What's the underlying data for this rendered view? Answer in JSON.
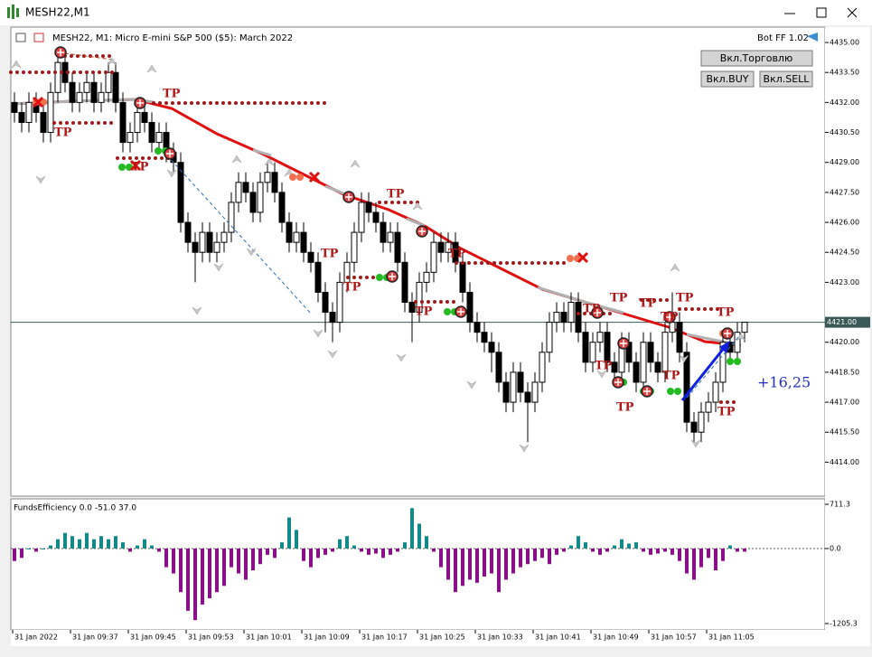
{
  "window": {
    "title": "MESH22,M1"
  },
  "chart_header": {
    "symbol_info": "MESH22, M1:  Micro E-mini S&P 500 ($5): March 2022",
    "bot_label": "Bot FF 1.02"
  },
  "buttons": {
    "trade": "Вкл.Торговлю",
    "buy": "Вкл.BUY",
    "sell": "Вкл.SELL"
  },
  "chart_data": {
    "type": "candlestick",
    "ylim": [
      4412.3,
      4435.77
    ],
    "yticks": [
      {
        "value": 4435,
        "label": "4435.00"
      },
      {
        "value": 4433.5,
        "label": "4433.50"
      },
      {
        "value": 4432,
        "label": "4432.00"
      },
      {
        "value": 4430.5,
        "label": "4430.50"
      },
      {
        "value": 4429,
        "label": "4429.00"
      },
      {
        "value": 4427.5,
        "label": "4427.50"
      },
      {
        "value": 4426,
        "label": "4426.00"
      },
      {
        "value": 4424.5,
        "label": "4424.50"
      },
      {
        "value": 4423,
        "label": "4423.00"
      },
      {
        "value": 4420,
        "label": "4420.00"
      },
      {
        "value": 4418.5,
        "label": "4418.50"
      },
      {
        "value": 4417,
        "label": "4417.00"
      },
      {
        "value": 4415.5,
        "label": "4415.50"
      },
      {
        "value": 4414,
        "label": "4414.00"
      }
    ],
    "current_price": {
      "value": 4421,
      "label": "4421.00"
    },
    "time_labels": [
      "31 Jan 2022",
      "31 Jan 09:37",
      "31 Jan 09:45",
      "31 Jan 09:53",
      "31 Jan 10:01",
      "31 Jan 10:09",
      "31 Jan 10:17",
      "31 Jan 10:25",
      "31 Jan 10:33",
      "31 Jan 10:41",
      "31 Jan 10:49",
      "31 Jan 10:57",
      "31 Jan 11:05"
    ],
    "candles": [
      [
        4432,
        4432.5,
        4431,
        4431.5
      ],
      [
        4431.5,
        4432,
        4430.5,
        4431
      ],
      [
        4431,
        4432.5,
        4430.5,
        4432
      ],
      [
        4432,
        4432.5,
        4431,
        4431.5
      ],
      [
        4431.5,
        4432,
        4430,
        4430.5
      ],
      [
        4430.5,
        4433,
        4430,
        4432.5
      ],
      [
        4432.5,
        4434.5,
        4432,
        4434
      ],
      [
        4434,
        4434.5,
        4432.5,
        4433
      ],
      [
        4433,
        4433.5,
        4431.5,
        4432
      ],
      [
        4432,
        4433,
        4431.5,
        4432.5
      ],
      [
        4432.5,
        4433.5,
        4432,
        4433
      ],
      [
        4433,
        4433.5,
        4431.5,
        4432
      ],
      [
        4432,
        4433,
        4431.5,
        4432.5
      ],
      [
        4432.5,
        4434,
        4432,
        4433.5
      ],
      [
        4433.5,
        4434,
        4431.5,
        4432
      ],
      [
        4432,
        4432.5,
        4429.5,
        4430
      ],
      [
        4430,
        4431,
        4429.5,
        4430.5
      ],
      [
        4430.5,
        4432,
        4430,
        4431.5
      ],
      [
        4431.5,
        4432,
        4430.5,
        4431
      ],
      [
        4431,
        4431.5,
        4429.5,
        4430
      ],
      [
        4430,
        4431,
        4429.5,
        4430.5
      ],
      [
        4430.5,
        4431,
        4429,
        4429.5
      ],
      [
        4429.5,
        4430,
        4428.5,
        4429
      ],
      [
        4429,
        4429.5,
        4425.5,
        4426
      ],
      [
        4426,
        4426.5,
        4424.5,
        4425
      ],
      [
        4425,
        4425.5,
        4423,
        4424.5
      ],
      [
        4424.5,
        4426,
        4424,
        4425.5
      ],
      [
        4425.5,
        4426,
        4424,
        4424.5
      ],
      [
        4424.5,
        4425.5,
        4424,
        4425
      ],
      [
        4425,
        4426,
        4424.5,
        4425.5
      ],
      [
        4425.5,
        4427.5,
        4425,
        4427
      ],
      [
        4427,
        4428.5,
        4426.5,
        4428
      ],
      [
        4428,
        4428.5,
        4427,
        4427.5
      ],
      [
        4427.5,
        4428,
        4426,
        4426.5
      ],
      [
        4426.5,
        4428.5,
        4426,
        4428
      ],
      [
        4428,
        4429,
        4427.5,
        4428.5
      ],
      [
        4428.5,
        4429,
        4427,
        4427.5
      ],
      [
        4427.5,
        4428,
        4425.5,
        4426
      ],
      [
        4426,
        4426.5,
        4424.5,
        4425
      ],
      [
        4425,
        4426,
        4424.5,
        4425.5
      ],
      [
        4425.5,
        4426,
        4424,
        4424.5
      ],
      [
        4424.5,
        4425,
        4423.5,
        4424
      ],
      [
        4424,
        4424.5,
        4422,
        4422.5
      ],
      [
        4422.5,
        4423,
        4420.5,
        4421.5
      ],
      [
        4421.5,
        4422,
        4420,
        4421
      ],
      [
        4421,
        4423.5,
        4420.5,
        4423
      ],
      [
        4423,
        4424.5,
        4422.5,
        4424
      ],
      [
        4424,
        4426,
        4423.5,
        4425.5
      ],
      [
        4425.5,
        4427.5,
        4425,
        4427
      ],
      [
        4427,
        4427.5,
        4426,
        4426.5
      ],
      [
        4426.5,
        4427,
        4425.5,
        4426
      ],
      [
        4426,
        4426.5,
        4424.5,
        4425
      ],
      [
        4425,
        4426,
        4424.5,
        4425.5
      ],
      [
        4425.5,
        4426,
        4423.5,
        4424
      ],
      [
        4424,
        4424.5,
        4421.5,
        4422
      ],
      [
        4422,
        4422.5,
        4420,
        4421.5
      ],
      [
        4421.5,
        4423.5,
        4421,
        4423
      ],
      [
        4423,
        4424,
        4422.5,
        4423.5
      ],
      [
        4423.5,
        4425.5,
        4423,
        4425
      ],
      [
        4425,
        4425.5,
        4424,
        4424.5
      ],
      [
        4424.5,
        4425.5,
        4424,
        4425
      ],
      [
        4425,
        4425.5,
        4423.5,
        4424
      ],
      [
        4424,
        4424.5,
        4422,
        4422.5
      ],
      [
        4422.5,
        4423,
        4420.5,
        4421
      ],
      [
        4421,
        4421.5,
        4420,
        4420.5
      ],
      [
        4420.5,
        4421,
        4419.5,
        4420
      ],
      [
        4420,
        4420.5,
        4418.5,
        4419.5
      ],
      [
        4419.5,
        4420,
        4417.5,
        4418
      ],
      [
        4418,
        4418.5,
        4416.5,
        4417
      ],
      [
        4417,
        4419,
        4416.5,
        4418.5
      ],
      [
        4418.5,
        4419,
        4417,
        4417.5
      ],
      [
        4417.5,
        4418,
        4415,
        4417
      ],
      [
        4417,
        4418.5,
        4416.5,
        4418
      ],
      [
        4418,
        4420,
        4417.5,
        4419.5
      ],
      [
        4419.5,
        4421.5,
        4419,
        4421
      ],
      [
        4421,
        4422,
        4420.5,
        4421.5
      ],
      [
        4421.5,
        4422,
        4420.5,
        4421
      ],
      [
        4421,
        4422.5,
        4420.5,
        4422
      ],
      [
        4422,
        4422.5,
        4420,
        4420.5
      ],
      [
        4420.5,
        4421,
        4418.5,
        4419
      ],
      [
        4419,
        4420.5,
        4418.5,
        4420
      ],
      [
        4420,
        4421,
        4419.5,
        4420.5
      ],
      [
        4420.5,
        4421,
        4418.5,
        4419
      ],
      [
        4419,
        4419.5,
        4418,
        4418.5
      ],
      [
        4418.5,
        4420.5,
        4418,
        4420
      ],
      [
        4420,
        4420.5,
        4418.5,
        4419
      ],
      [
        4419,
        4419.5,
        4417.5,
        4418
      ],
      [
        4418,
        4420.5,
        4417.5,
        4420
      ],
      [
        4420,
        4420.5,
        4418.5,
        4419
      ],
      [
        4419,
        4419.5,
        4418,
        4418.5
      ],
      [
        4418.5,
        4421,
        4418,
        4420.5
      ],
      [
        4420.5,
        4422.5,
        4420,
        4421
      ],
      [
        4421,
        4421.5,
        4419,
        4419.5
      ],
      [
        4419.5,
        4420,
        4415.5,
        4416
      ],
      [
        4416,
        4416.5,
        4415,
        4415.5
      ],
      [
        4415.5,
        4417,
        4415,
        4416.5
      ],
      [
        4416.5,
        4417.5,
        4416,
        4417
      ],
      [
        4417,
        4418.5,
        4416.5,
        4418
      ],
      [
        4418,
        4420.5,
        4417.5,
        4420
      ],
      [
        4420,
        4420.5,
        4419,
        4419.5
      ],
      [
        4419.5,
        4421,
        4419,
        4420.5
      ],
      [
        4420.5,
        4421,
        4420,
        4421
      ]
    ],
    "tp_label": "TP",
    "profit_label": "+16,25"
  },
  "indicator": {
    "type": "bar",
    "title": "FundsEfficiency 0.0 -51.0 37.0",
    "ylim": [
      -1205.3,
      711.3
    ],
    "yticks": [
      711.3,
      {
        "value": 0,
        "label": "0.0"
      },
      -1205.3
    ],
    "positive_color": "#138a8a",
    "negative_color": "#8b0f8b",
    "values": [
      -200,
      -150,
      0,
      -50,
      0,
      50,
      150,
      250,
      200,
      150,
      250,
      150,
      200,
      150,
      200,
      100,
      -50,
      50,
      150,
      50,
      -50,
      -300,
      -400,
      -700,
      -1000,
      -1150,
      -900,
      -800,
      -700,
      -600,
      -300,
      -400,
      -500,
      -350,
      -250,
      -100,
      -150,
      100,
      500,
      300,
      -200,
      -300,
      -150,
      -100,
      -50,
      150,
      200,
      50,
      -50,
      -100,
      -80,
      -150,
      -100,
      -50,
      100,
      650,
      400,
      200,
      -50,
      -300,
      -500,
      -700,
      -600,
      -500,
      -550,
      -450,
      -400,
      -700,
      -500,
      -400,
      -300,
      -250,
      -200,
      -150,
      -250,
      -100,
      -50,
      50,
      200,
      100,
      -50,
      -100,
      -50,
      50,
      150,
      80,
      100,
      -50,
      -100,
      -80,
      -50,
      -100,
      -200,
      -400,
      -500,
      -300,
      -150,
      -350,
      -200,
      50,
      -50,
      -50
    ]
  }
}
